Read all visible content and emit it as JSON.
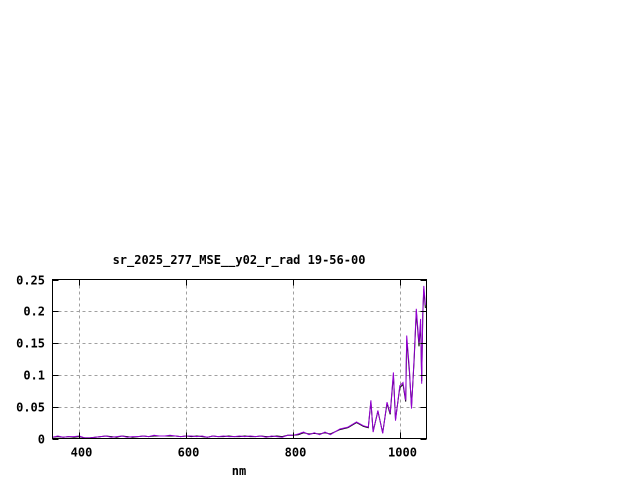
{
  "chart_data": {
    "type": "line",
    "title": "sr_2025_277_MSE__y02_r_rad 19-56-00",
    "xlabel": "nm",
    "ylabel": "",
    "xlim": [
      350,
      1050
    ],
    "ylim": [
      0,
      0.25
    ],
    "grid": true,
    "x_ticks": [
      "400",
      "600",
      "800",
      "1000"
    ],
    "y_ticks": [
      "0",
      "0.05",
      "0.1",
      "0.15",
      "0.2",
      "0.25"
    ],
    "x": [
      350,
      360,
      370,
      380,
      390,
      400,
      410,
      420,
      430,
      440,
      450,
      460,
      470,
      480,
      490,
      500,
      510,
      520,
      530,
      540,
      550,
      560,
      570,
      580,
      590,
      600,
      610,
      620,
      630,
      640,
      650,
      660,
      670,
      680,
      690,
      700,
      710,
      720,
      730,
      740,
      750,
      760,
      770,
      780,
      790,
      800,
      810,
      820,
      830,
      840,
      850,
      860,
      870,
      888,
      903,
      919,
      932,
      941,
      946,
      950,
      959,
      968,
      976,
      982,
      988,
      992,
      1000,
      1006,
      1011,
      1013,
      1018,
      1022,
      1027,
      1031,
      1036,
      1039,
      1041,
      1043,
      1045,
      1048
    ],
    "series": [
      {
        "color": "#000000",
        "values": [
          0.002,
          0.003,
          0.002,
          0.003,
          0.002,
          0.003,
          0.001,
          0.001,
          0.002,
          0.003,
          0.004,
          0.003,
          0.002,
          0.004,
          0.003,
          0.002,
          0.003,
          0.004,
          0.003,
          0.004,
          0.004,
          0.004,
          0.004,
          0.004,
          0.003,
          0.004,
          0.003,
          0.004,
          0.003,
          0.002,
          0.004,
          0.003,
          0.003,
          0.004,
          0.003,
          0.003,
          0.004,
          0.003,
          0.003,
          0.004,
          0.003,
          0.003,
          0.004,
          0.003,
          0.005,
          0.005,
          0.006,
          0.009,
          0.007,
          0.008,
          0.007,
          0.009,
          0.007,
          0.014,
          0.017,
          0.025,
          0.019,
          0.017,
          0.058,
          0.011,
          0.043,
          0.009,
          0.055,
          0.038,
          0.1,
          0.03,
          0.08,
          0.085,
          0.058,
          0.155,
          0.105,
          0.05,
          0.125,
          0.2,
          0.145,
          0.18,
          0.09,
          0.195,
          0.235,
          0.205
        ]
      },
      {
        "color": "#9400d3",
        "values": [
          0.002,
          0.004,
          0.002,
          0.003,
          0.003,
          0.004,
          0.001,
          0.001,
          0.002,
          0.003,
          0.004,
          0.002,
          0.003,
          0.004,
          0.002,
          0.003,
          0.003,
          0.004,
          0.003,
          0.005,
          0.004,
          0.004,
          0.005,
          0.004,
          0.003,
          0.004,
          0.004,
          0.003,
          0.004,
          0.002,
          0.004,
          0.003,
          0.004,
          0.003,
          0.003,
          0.004,
          0.003,
          0.004,
          0.003,
          0.004,
          0.002,
          0.004,
          0.003,
          0.002,
          0.005,
          0.005,
          0.007,
          0.01,
          0.006,
          0.009,
          0.006,
          0.01,
          0.006,
          0.015,
          0.018,
          0.026,
          0.02,
          0.018,
          0.06,
          0.01,
          0.044,
          0.008,
          0.057,
          0.04,
          0.104,
          0.028,
          0.083,
          0.088,
          0.06,
          0.162,
          0.11,
          0.047,
          0.13,
          0.204,
          0.15,
          0.188,
          0.086,
          0.2,
          0.24,
          0.21
        ]
      }
    ]
  }
}
